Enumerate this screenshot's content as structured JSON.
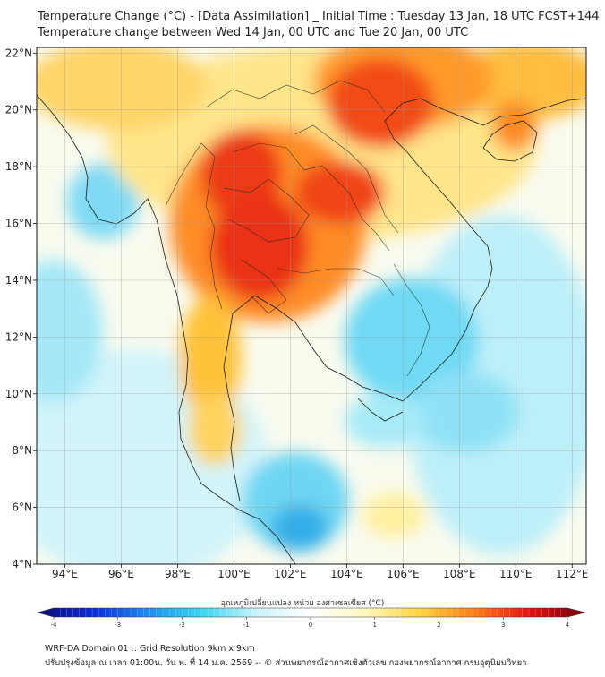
{
  "title_line1": "Temperature Change (°C) - [Data Assimilation] _ Initial Time : Tuesday 13 Jan, 18 UTC FCST+144",
  "title_line2": "Temperature change between Wed 14 Jan, 00 UTC and Tue 20 Jan, 00 UTC",
  "map": {
    "lon_range": [
      93,
      112.5
    ],
    "lat_range": [
      4,
      22.2
    ],
    "lon_ticks": [
      {
        "v": 94,
        "label": "94°E"
      },
      {
        "v": 96,
        "label": "96°E"
      },
      {
        "v": 98,
        "label": "98°E"
      },
      {
        "v": 100,
        "label": "100°E"
      },
      {
        "v": 102,
        "label": "102°E"
      },
      {
        "v": 104,
        "label": "104°E"
      },
      {
        "v": 106,
        "label": "106°E"
      },
      {
        "v": 108,
        "label": "108°E"
      },
      {
        "v": 110,
        "label": "110°E"
      },
      {
        "v": 112,
        "label": "112°E"
      }
    ],
    "lat_ticks": [
      {
        "v": 4,
        "label": "4°N"
      },
      {
        "v": 6,
        "label": "6°N"
      },
      {
        "v": 8,
        "label": "8°N"
      },
      {
        "v": 10,
        "label": "10°N"
      },
      {
        "v": 12,
        "label": "12°N"
      },
      {
        "v": 14,
        "label": "14°N"
      },
      {
        "v": 16,
        "label": "16°N"
      },
      {
        "v": 18,
        "label": "18°N"
      },
      {
        "v": 20,
        "label": "20°N"
      },
      {
        "v": 22,
        "label": "22°N"
      }
    ],
    "grid": true
  },
  "colorbar": {
    "label": "อุณหภูมิเปลี่ยนแปลง หน่วย องศาเซลเซียส (°C)",
    "min": -4,
    "max": 4,
    "ticks": [
      {
        "v": -4,
        "label": "-4"
      },
      {
        "v": -3,
        "label": "-3"
      },
      {
        "v": -2,
        "label": "-2"
      },
      {
        "v": -1,
        "label": "-1"
      },
      {
        "v": 0,
        "label": "0"
      },
      {
        "v": 1,
        "label": "1"
      },
      {
        "v": 2,
        "label": "2"
      },
      {
        "v": 3,
        "label": "3"
      },
      {
        "v": 4,
        "label": "4"
      }
    ],
    "colors": [
      "#0b0b78",
      "#0a2bd6",
      "#1a8cf0",
      "#38d6f2",
      "#c8f4fb",
      "#ffffff",
      "#fff7b8",
      "#ffd23a",
      "#ff7a14",
      "#e41111",
      "#6e0008"
    ]
  },
  "field_colors": {
    "strong_warm": "#e8251a",
    "warm": "#ff7f1f",
    "mild_warm": "#ffc23b",
    "slight_warm": "#fff0a0",
    "neutral": "#fbfbf2",
    "slight_cool": "#c7f1fa",
    "cool": "#74ddf5",
    "strong_cool": "#2eb3ee"
  },
  "footer_line1": "WRF-DA Domain 01 :: Grid Resolution 9km x 9km",
  "footer_line2": "ปรับปรุงข้อมูล ณ เวลา 01:00น. วัน พ. ที่ 14 ม.ค. 2569 -- © ส่วนพยากรณ์อากาศเชิงตัวเลข กองพยากรณ์อากาศ กรมอุตุนิยมวิทยา"
}
